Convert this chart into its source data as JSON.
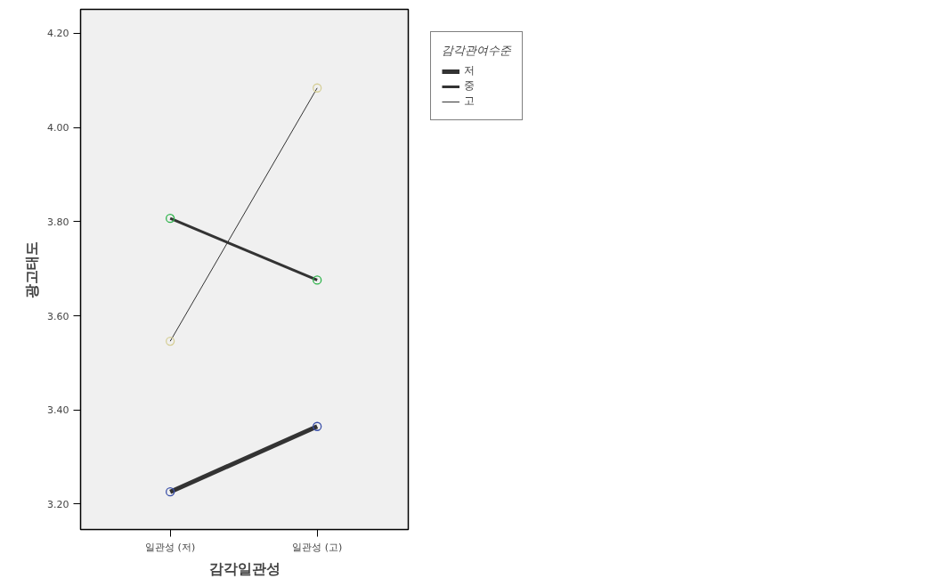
{
  "chart_data": {
    "type": "line",
    "xlabel": "감각일관성",
    "ylabel": "광고태도",
    "legend_title": "감각관여수준",
    "categories": [
      "일관성 (저)",
      "일관성 (고)"
    ],
    "series": [
      {
        "name": "저",
        "color": "#333333",
        "colors": [
          "#3a4fa8",
          "#3a4fa8"
        ],
        "values": [
          3.226,
          3.365
        ]
      },
      {
        "name": "중",
        "color": "#333333",
        "colors": [
          "#2db34a",
          "#2db34a"
        ],
        "values": [
          3.807,
          3.676
        ]
      },
      {
        "name": "고",
        "color": "#333333",
        "colors": [
          "#d6cf98",
          "#d6cf98"
        ],
        "values": [
          3.546,
          4.084
        ]
      }
    ],
    "ylim": [
      3.146,
      4.251
    ],
    "yticks": [
      {
        "value": 3.2,
        "label": "3.20"
      },
      {
        "value": 3.4,
        "label": "3.40"
      },
      {
        "value": 3.6,
        "label": "3.60"
      },
      {
        "value": 3.8,
        "label": "3.80"
      },
      {
        "value": 4.0,
        "label": "4.00"
      },
      {
        "value": 4.2,
        "label": "4.20"
      }
    ],
    "grid": false,
    "legend": "right",
    "marker": "circle",
    "line_style": "solid"
  }
}
